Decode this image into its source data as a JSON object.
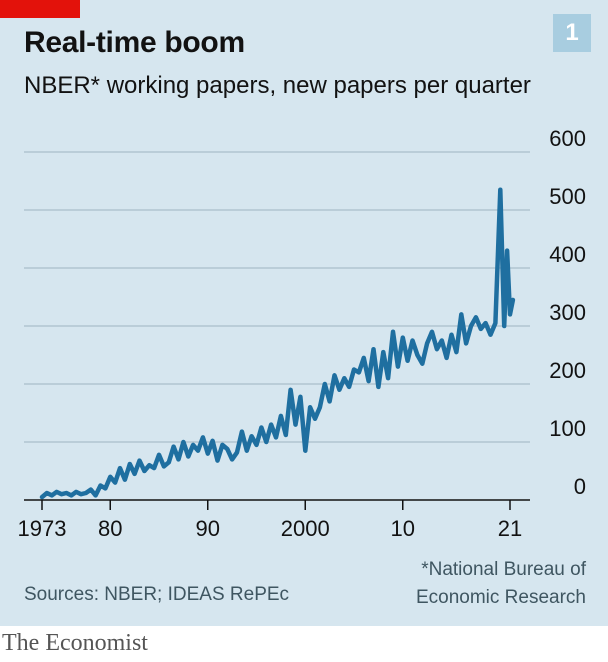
{
  "header": {
    "title": "Real-time boom",
    "subtitle": "NBER* working papers, new papers per quarter",
    "badge": "1"
  },
  "footer": {
    "source": "Sources: NBER; IDEAS RePEc",
    "footnote": "*National Bureau of\nEconomic Research",
    "brand": "The Economist"
  },
  "colors": {
    "background": "#d6e6ef",
    "line": "#1f6fa0",
    "accent_red": "#e3120b",
    "gridline": "#9fb4c0",
    "axis": "#121212"
  },
  "chart_data": {
    "type": "line",
    "title": "Real-time boom",
    "subtitle": "NBER* working papers, new papers per quarter",
    "xlabel": "",
    "ylabel": "",
    "xlim": [
      1972,
      2025
    ],
    "ylim": [
      0,
      600
    ],
    "y_ticks": [
      0,
      100,
      200,
      300,
      400,
      500,
      600
    ],
    "x_ticks": [
      {
        "value": 1973,
        "label": "1973"
      },
      {
        "value": 1980,
        "label": "80"
      },
      {
        "value": 1990,
        "label": "90"
      },
      {
        "value": 2000,
        "label": "2000"
      },
      {
        "value": 2010,
        "label": "10"
      },
      {
        "value": 2021,
        "label": "21"
      }
    ],
    "grid": true,
    "y_axis_side": "right",
    "series": [
      {
        "points": [
          [
            1973.0,
            5
          ],
          [
            1973.5,
            12
          ],
          [
            1974.0,
            8
          ],
          [
            1974.5,
            14
          ],
          [
            1975.0,
            10
          ],
          [
            1975.5,
            12
          ],
          [
            1976.0,
            8
          ],
          [
            1976.5,
            14
          ],
          [
            1977.0,
            10
          ],
          [
            1977.5,
            12
          ],
          [
            1978.0,
            18
          ],
          [
            1978.5,
            8
          ],
          [
            1979.0,
            25
          ],
          [
            1979.5,
            20
          ],
          [
            1980.0,
            40
          ],
          [
            1980.5,
            30
          ],
          [
            1981.0,
            55
          ],
          [
            1981.5,
            35
          ],
          [
            1982.0,
            62
          ],
          [
            1982.5,
            45
          ],
          [
            1983.0,
            68
          ],
          [
            1983.5,
            50
          ],
          [
            1984.0,
            60
          ],
          [
            1984.5,
            55
          ],
          [
            1985.0,
            78
          ],
          [
            1985.5,
            58
          ],
          [
            1986.0,
            65
          ],
          [
            1986.5,
            92
          ],
          [
            1987.0,
            70
          ],
          [
            1987.5,
            100
          ],
          [
            1988.0,
            75
          ],
          [
            1988.5,
            95
          ],
          [
            1989.0,
            85
          ],
          [
            1989.5,
            108
          ],
          [
            1990.0,
            80
          ],
          [
            1990.5,
            102
          ],
          [
            1991.0,
            68
          ],
          [
            1991.5,
            95
          ],
          [
            1992.0,
            88
          ],
          [
            1992.5,
            70
          ],
          [
            1993.0,
            82
          ],
          [
            1993.5,
            118
          ],
          [
            1994.0,
            85
          ],
          [
            1994.5,
            110
          ],
          [
            1995.0,
            95
          ],
          [
            1995.5,
            125
          ],
          [
            1996.0,
            100
          ],
          [
            1996.5,
            130
          ],
          [
            1997.0,
            108
          ],
          [
            1997.5,
            145
          ],
          [
            1998.0,
            112
          ],
          [
            1998.5,
            190
          ],
          [
            1999.0,
            130
          ],
          [
            1999.5,
            178
          ],
          [
            2000.0,
            85
          ],
          [
            2000.5,
            160
          ],
          [
            2001.0,
            140
          ],
          [
            2001.5,
            160
          ],
          [
            2002.0,
            200
          ],
          [
            2002.5,
            170
          ],
          [
            2003.0,
            215
          ],
          [
            2003.5,
            190
          ],
          [
            2004.0,
            210
          ],
          [
            2004.5,
            195
          ],
          [
            2005.0,
            225
          ],
          [
            2005.5,
            220
          ],
          [
            2006.0,
            245
          ],
          [
            2006.5,
            205
          ],
          [
            2007.0,
            260
          ],
          [
            2007.5,
            195
          ],
          [
            2008.0,
            255
          ],
          [
            2008.5,
            210
          ],
          [
            2009.0,
            290
          ],
          [
            2009.5,
            230
          ],
          [
            2010.0,
            280
          ],
          [
            2010.5,
            240
          ],
          [
            2011.0,
            275
          ],
          [
            2011.5,
            250
          ],
          [
            2012.0,
            235
          ],
          [
            2012.5,
            270
          ],
          [
            2013.0,
            290
          ],
          [
            2013.5,
            260
          ],
          [
            2014.0,
            275
          ],
          [
            2014.5,
            245
          ],
          [
            2015.0,
            285
          ],
          [
            2015.5,
            255
          ],
          [
            2016.0,
            320
          ],
          [
            2016.5,
            270
          ],
          [
            2017.0,
            300
          ],
          [
            2017.5,
            315
          ],
          [
            2018.0,
            295
          ],
          [
            2018.5,
            305
          ],
          [
            2019.0,
            285
          ],
          [
            2019.5,
            305
          ],
          [
            2020.0,
            535
          ],
          [
            2020.4,
            300
          ],
          [
            2020.7,
            430
          ],
          [
            2021.0,
            320
          ],
          [
            2021.3,
            345
          ]
        ]
      }
    ]
  }
}
